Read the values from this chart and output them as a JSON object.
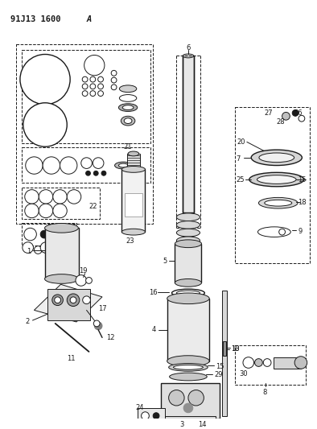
{
  "title": "91J13 1600A",
  "bg_color": "#ffffff",
  "line_color": "#1a1a1a",
  "fig_width": 3.94,
  "fig_height": 5.33,
  "dpi": 100
}
